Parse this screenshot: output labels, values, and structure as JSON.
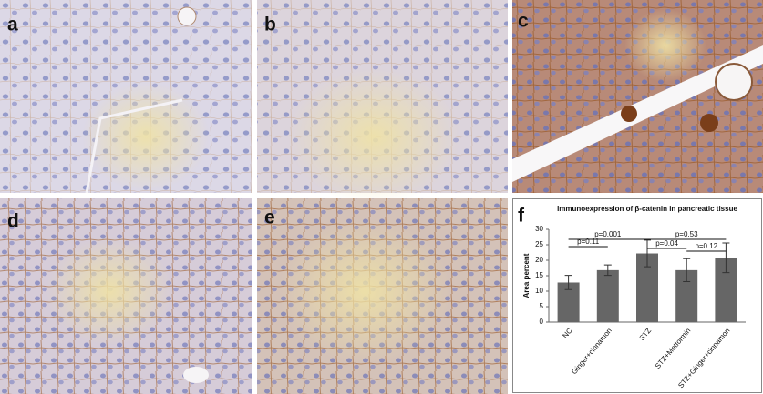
{
  "panels": [
    {
      "label": "a"
    },
    {
      "label": "b"
    },
    {
      "label": "c"
    },
    {
      "label": "d"
    },
    {
      "label": "e"
    }
  ],
  "chart_data": {
    "type": "bar",
    "panel_label": "f",
    "title": "Immunoexpression of β-catenin in pancreatic tissue",
    "y_label": "Area percent",
    "categories": [
      "NC",
      "Ginger+cinnamon",
      "STZ",
      "STZ+Metformin",
      "STZ+Ginger+cinnamon"
    ],
    "values": [
      12.8,
      16.8,
      22.2,
      16.8,
      20.8
    ],
    "errors": [
      2.3,
      1.7,
      4.3,
      3.7,
      4.8
    ],
    "color": "#666666",
    "ylim": [
      0,
      30
    ],
    "yticks": [
      0,
      5,
      10,
      15,
      20,
      25,
      30
    ],
    "annotations": [
      {
        "text": "p=0.001",
        "between": [
          "NC",
          "STZ"
        ]
      },
      {
        "text": "p=0.53",
        "between": [
          "STZ",
          "STZ+Ginger+cinnamon"
        ]
      },
      {
        "text": "p=0.11",
        "between": [
          "NC",
          "Ginger+cinnamon"
        ]
      },
      {
        "text": "p=0.04",
        "between": [
          "STZ",
          "STZ+Metformin"
        ]
      },
      {
        "text": "p=0.12",
        "between": [
          "STZ+Metformin",
          "STZ+Ginger+cinnamon"
        ]
      }
    ]
  }
}
